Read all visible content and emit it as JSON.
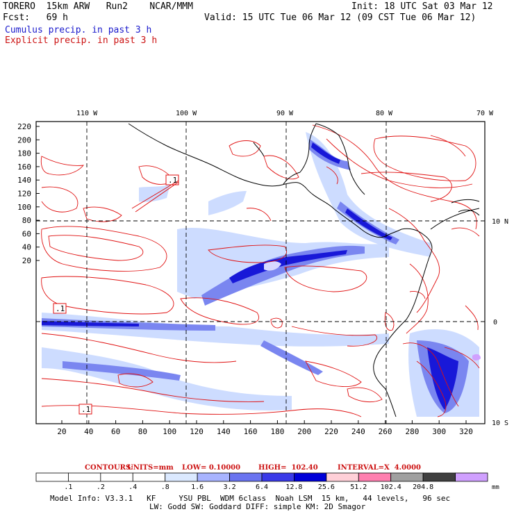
{
  "header": {
    "left_line1": "TORERO  15km ARW   Run2    NCAR/MMM",
    "left_line2": "Fcst:   69 h",
    "right_line1": "Init: 18 UTC Sat 03 Mar 12",
    "right_line2": "Valid: 15 UTC Tue 06 Mar 12 (09 CST Tue 06 Mar 12)",
    "legend_cumulus": "Cumulus precip. in past 3 h",
    "legend_explicit": "Explicit precip. in past 3 h"
  },
  "map": {
    "lon_labels": [
      "110 W",
      "100 W",
      "90 W",
      "80 W",
      "70 W"
    ],
    "lat_labels": [
      "10 N",
      "0",
      "10 S"
    ],
    "y_ticks": [
      "220",
      "200",
      "180",
      "160",
      "140",
      "120",
      "100",
      "80",
      "60",
      "40",
      "20"
    ],
    "x_ticks": [
      "20",
      "40",
      "60",
      "80",
      "100",
      "120",
      "140",
      "160",
      "180",
      "200",
      "220",
      "240",
      "260",
      "280",
      "300",
      "320"
    ],
    "contour_boxes": [
      ".1",
      ".1",
      ".1"
    ],
    "colors": {
      "contour": "#e01010",
      "coast": "#000000",
      "precip_light": "#c8d8ff",
      "precip_mid": "#7a86f0",
      "precip_dark": "#1818d8"
    }
  },
  "contour_info": {
    "label": "CONTOURS:",
    "units": "UNITS=mm",
    "low": "LOW= 0.10000",
    "high": "HIGH=  102.40",
    "interval": "INTERVAL=X  4.0000"
  },
  "colorbar": {
    "values": [
      ".1",
      ".2",
      ".4",
      ".8",
      "1.6",
      "3.2",
      "6.4",
      "12.8",
      "25.6",
      "51.2",
      "102.4",
      "204.8"
    ],
    "unit": "mm",
    "colors": [
      "#ffffff",
      "#ffffff",
      "#ffffff",
      "#ffffff",
      "#dbe9ff",
      "#a8b4ff",
      "#6a74f0",
      "#3a3ae8",
      "#0000d8",
      "#ffd0d8",
      "#ff80b0",
      "#a0a0a0",
      "#404040",
      "#d0a0ff"
    ]
  },
  "footer": {
    "line1": "Model Info: V3.3.1   KF     YSU PBL  WDM 6class  Noah LSM  15 km,   44 levels,   96 sec",
    "line2": "LW: Godd SW: Goddard DIFF: simple KM: 2D Smagor"
  }
}
